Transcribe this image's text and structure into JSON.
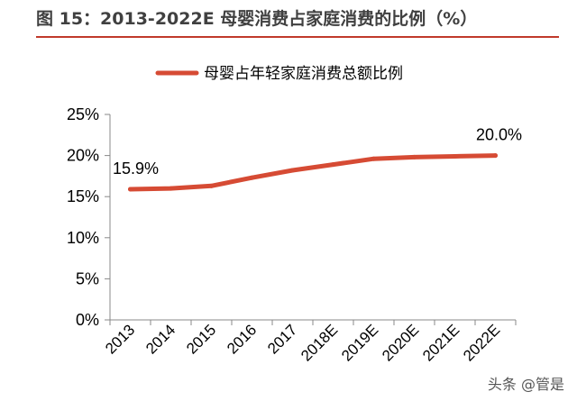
{
  "figure_title": "图 15：2013-2022E 母婴消费占家庭消费的比例（%）",
  "watermark": "头条 @管是",
  "chart_data": {
    "type": "line",
    "title": "图 15：2013-2022E 母婴消费占家庭消费的比例（%）",
    "categories": [
      "2013",
      "2014",
      "2015",
      "2016",
      "2017",
      "2018E",
      "2019E",
      "2020E",
      "2021E",
      "2022E"
    ],
    "series": [
      {
        "name": "母婴占年轻家庭消费总额比例",
        "color": "#d64b34",
        "values": [
          15.9,
          16.0,
          16.3,
          17.3,
          18.2,
          18.9,
          19.6,
          19.8,
          19.9,
          20.0
        ]
      }
    ],
    "y_tick_labels": [
      "0%",
      "5%",
      "10%",
      "15%",
      "20%",
      "25%"
    ],
    "ylim": [
      0,
      25
    ],
    "data_labels": [
      {
        "index": 0,
        "text": "15.9%"
      },
      {
        "index": 9,
        "text": "20.0%"
      }
    ],
    "legend_placement": "top-center",
    "grid": false,
    "xlabel": "",
    "ylabel": ""
  }
}
